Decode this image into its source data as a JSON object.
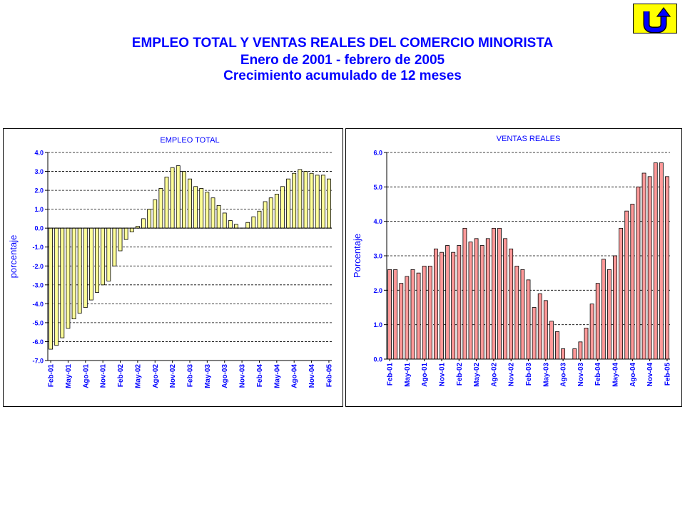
{
  "header": {
    "title_line1": "EMPLEO TOTAL Y VENTAS REALES DEL COMERCIO MINORISTA",
    "title_line2": "Enero de 2001 - febrero de 2005",
    "title_line3": "Crecimiento acumulado de 12 meses"
  },
  "nav": {
    "back_icon": "u-turn-arrow-icon",
    "button_color": "#ffff00",
    "icon_color": "#0000ff"
  },
  "chart_data": [
    {
      "type": "bar",
      "title": "EMPLEO TOTAL",
      "ylabel": "porcentaje",
      "xlabel": "",
      "ylim": [
        -7.0,
        4.0
      ],
      "yticks": [
        "4.0",
        "3.0",
        "2.0",
        "1.0",
        "0.0",
        "-1.0",
        "-2.0",
        "-3.0",
        "-4.0",
        "-5.0",
        "-6.0",
        "-7.0"
      ],
      "grid": true,
      "bar_color": "#ffff99",
      "categories": [
        "Feb-01",
        "Mar-01",
        "Abr-01",
        "May-01",
        "Jun-01",
        "Jul-01",
        "Ago-01",
        "Sep-01",
        "Oct-01",
        "Nov-01",
        "Dic-01",
        "Ene-02",
        "Feb-02",
        "Mar-02",
        "Abr-02",
        "May-02",
        "Jun-02",
        "Jul-02",
        "Ago-02",
        "Sep-02",
        "Oct-02",
        "Nov-02",
        "Dic-02",
        "Ene-03",
        "Feb-03",
        "Mar-03",
        "Abr-03",
        "May-03",
        "Jun-03",
        "Jul-03",
        "Ago-03",
        "Sep-03",
        "Oct-03",
        "Nov-03",
        "Dic-03",
        "Ene-04",
        "Feb-04",
        "Mar-04",
        "Abr-04",
        "May-04",
        "Jun-04",
        "Jul-04",
        "Ago-04",
        "Sep-04",
        "Oct-04",
        "Nov-04",
        "Dic-04",
        "Ene-05",
        "Feb-05"
      ],
      "xtick_labels": [
        "Feb-01",
        "May-01",
        "Ago-01",
        "Nov-01",
        "Feb-02",
        "May-02",
        "Ago-02",
        "Nov-02",
        "Feb-03",
        "May-03",
        "Ago-03",
        "Nov-03",
        "Feb-04",
        "May-04",
        "Ago-04",
        "Nov-04",
        "Feb-05"
      ],
      "values": [
        -6.4,
        -6.2,
        -5.8,
        -5.3,
        -4.8,
        -4.5,
        -4.2,
        -3.8,
        -3.4,
        -3.0,
        -2.8,
        -2.0,
        -1.2,
        -0.6,
        -0.2,
        0.1,
        0.5,
        1.0,
        1.5,
        2.1,
        2.7,
        3.2,
        3.3,
        3.0,
        2.6,
        2.2,
        2.1,
        1.9,
        1.6,
        1.2,
        0.8,
        0.4,
        0.2,
        0.0,
        0.3,
        0.6,
        0.9,
        1.4,
        1.6,
        1.8,
        2.2,
        2.6,
        2.9,
        3.1,
        3.0,
        2.9,
        2.8,
        2.8,
        2.6
      ]
    },
    {
      "type": "bar",
      "title": "VENTAS REALES",
      "ylabel": "Porcentaje",
      "xlabel": "",
      "ylim": [
        0.0,
        6.0
      ],
      "yticks": [
        "6.0",
        "5.0",
        "4.0",
        "3.0",
        "2.0",
        "1.0",
        "0.0"
      ],
      "grid": true,
      "bar_color": "#ff9999",
      "categories": [
        "Feb-01",
        "Mar-01",
        "Abr-01",
        "May-01",
        "Jun-01",
        "Jul-01",
        "Ago-01",
        "Sep-01",
        "Oct-01",
        "Nov-01",
        "Dic-01",
        "Ene-02",
        "Feb-02",
        "Mar-02",
        "Abr-02",
        "May-02",
        "Jun-02",
        "Jul-02",
        "Ago-02",
        "Sep-02",
        "Oct-02",
        "Nov-02",
        "Dic-02",
        "Ene-03",
        "Feb-03",
        "Mar-03",
        "Abr-03",
        "May-03",
        "Jun-03",
        "Jul-03",
        "Ago-03",
        "Sep-03",
        "Oct-03",
        "Nov-03",
        "Dic-03",
        "Ene-04",
        "Feb-04",
        "Mar-04",
        "Abr-04",
        "May-04",
        "Jun-04",
        "Jul-04",
        "Ago-04",
        "Sep-04",
        "Oct-04",
        "Nov-04",
        "Dic-04",
        "Ene-05",
        "Feb-05"
      ],
      "xtick_labels": [
        "Feb-01",
        "May-01",
        "Ago-01",
        "Nov-01",
        "Feb-02",
        "May-02",
        "Ago-02",
        "Nov-02",
        "Feb-03",
        "May-03",
        "Ago-03",
        "Nov-03",
        "Feb-04",
        "May-04",
        "Ago-04",
        "Nov-04",
        "Feb-05"
      ],
      "values": [
        2.6,
        2.6,
        2.2,
        2.4,
        2.6,
        2.5,
        2.7,
        2.7,
        3.2,
        3.1,
        3.3,
        3.1,
        3.3,
        3.8,
        3.4,
        3.5,
        3.3,
        3.5,
        3.8,
        3.8,
        3.5,
        3.2,
        2.7,
        2.6,
        2.3,
        1.5,
        1.9,
        1.7,
        1.1,
        0.8,
        0.3,
        0.0,
        0.3,
        0.5,
        0.9,
        1.6,
        2.2,
        2.9,
        2.6,
        3.0,
        3.8,
        4.3,
        4.5,
        5.0,
        5.4,
        5.3,
        5.7,
        5.7,
        5.3
      ]
    }
  ]
}
